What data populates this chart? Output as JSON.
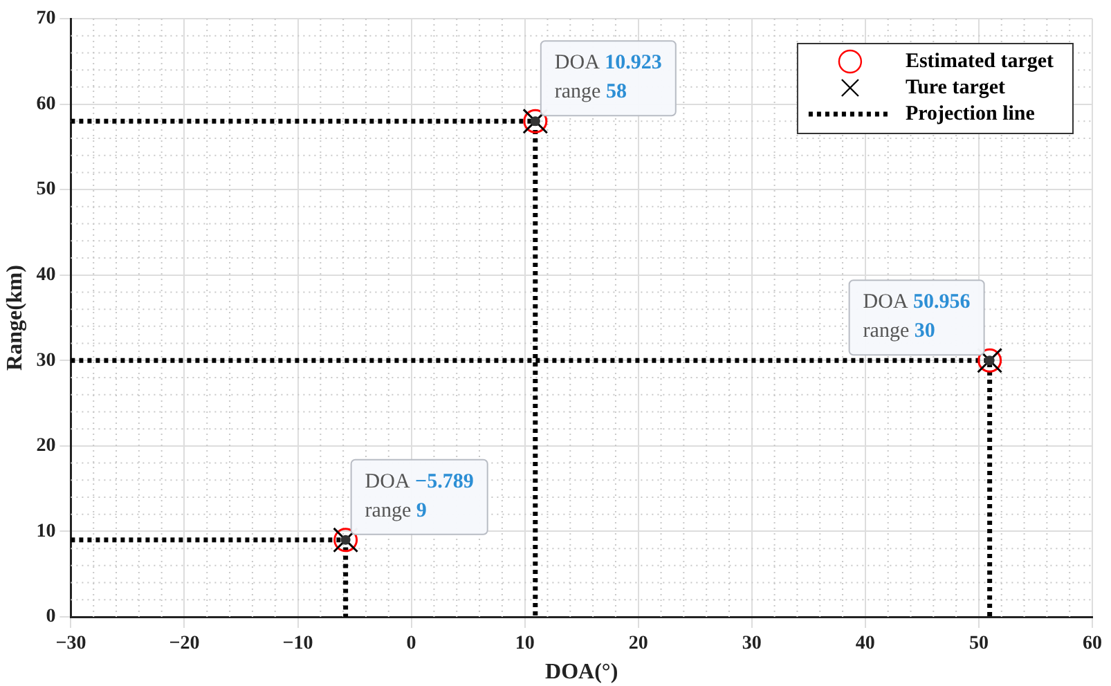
{
  "chart_data": {
    "type": "scatter",
    "xlabel": "DOA(°)",
    "ylabel": "Range(km)",
    "xlim": [
      -30,
      60
    ],
    "ylim": [
      0,
      70
    ],
    "xticks": [
      {
        "value": -30,
        "label": "−30"
      },
      {
        "value": -20,
        "label": "−20"
      },
      {
        "value": -10,
        "label": "−10"
      },
      0,
      10,
      20,
      30,
      40,
      50,
      60
    ],
    "yticks": [
      0,
      10,
      20,
      30,
      40,
      50,
      60,
      70
    ],
    "grid": true,
    "legend": "top right",
    "series": [
      {
        "name": "Projection line",
        "type": "line",
        "color": "#000000",
        "line_style": "dotted",
        "marker": "none",
        "x": [
          -30,
          -5.789,
          -5.789,
          null,
          -30,
          10.923,
          10.923,
          null,
          -30,
          50.956,
          50.956
        ],
        "values": [
          9,
          9,
          0,
          null,
          58,
          58,
          0,
          null,
          30,
          30,
          0
        ]
      },
      {
        "name": "Estimated target",
        "type": "scatter",
        "color": "#ff0000",
        "marker": "circle",
        "x": [
          -5.789,
          10.923,
          50.956
        ],
        "values": [
          9,
          58,
          30
        ]
      },
      {
        "name": "Ture target",
        "type": "scatter",
        "color": "#000000",
        "marker": "cross",
        "x": [
          -5.789,
          10.923,
          50.956
        ],
        "values": [
          9,
          58,
          30
        ]
      }
    ],
    "annotations": [
      {
        "text": "DOA −5.789\nrange 9",
        "x": -5.789,
        "y": 9
      },
      {
        "text": "DOA 10.923\nrange 58",
        "x": 10.923,
        "y": 58
      },
      {
        "text": "DOA 50.956\nrange 30",
        "x": 50.956,
        "y": 30
      }
    ]
  }
}
